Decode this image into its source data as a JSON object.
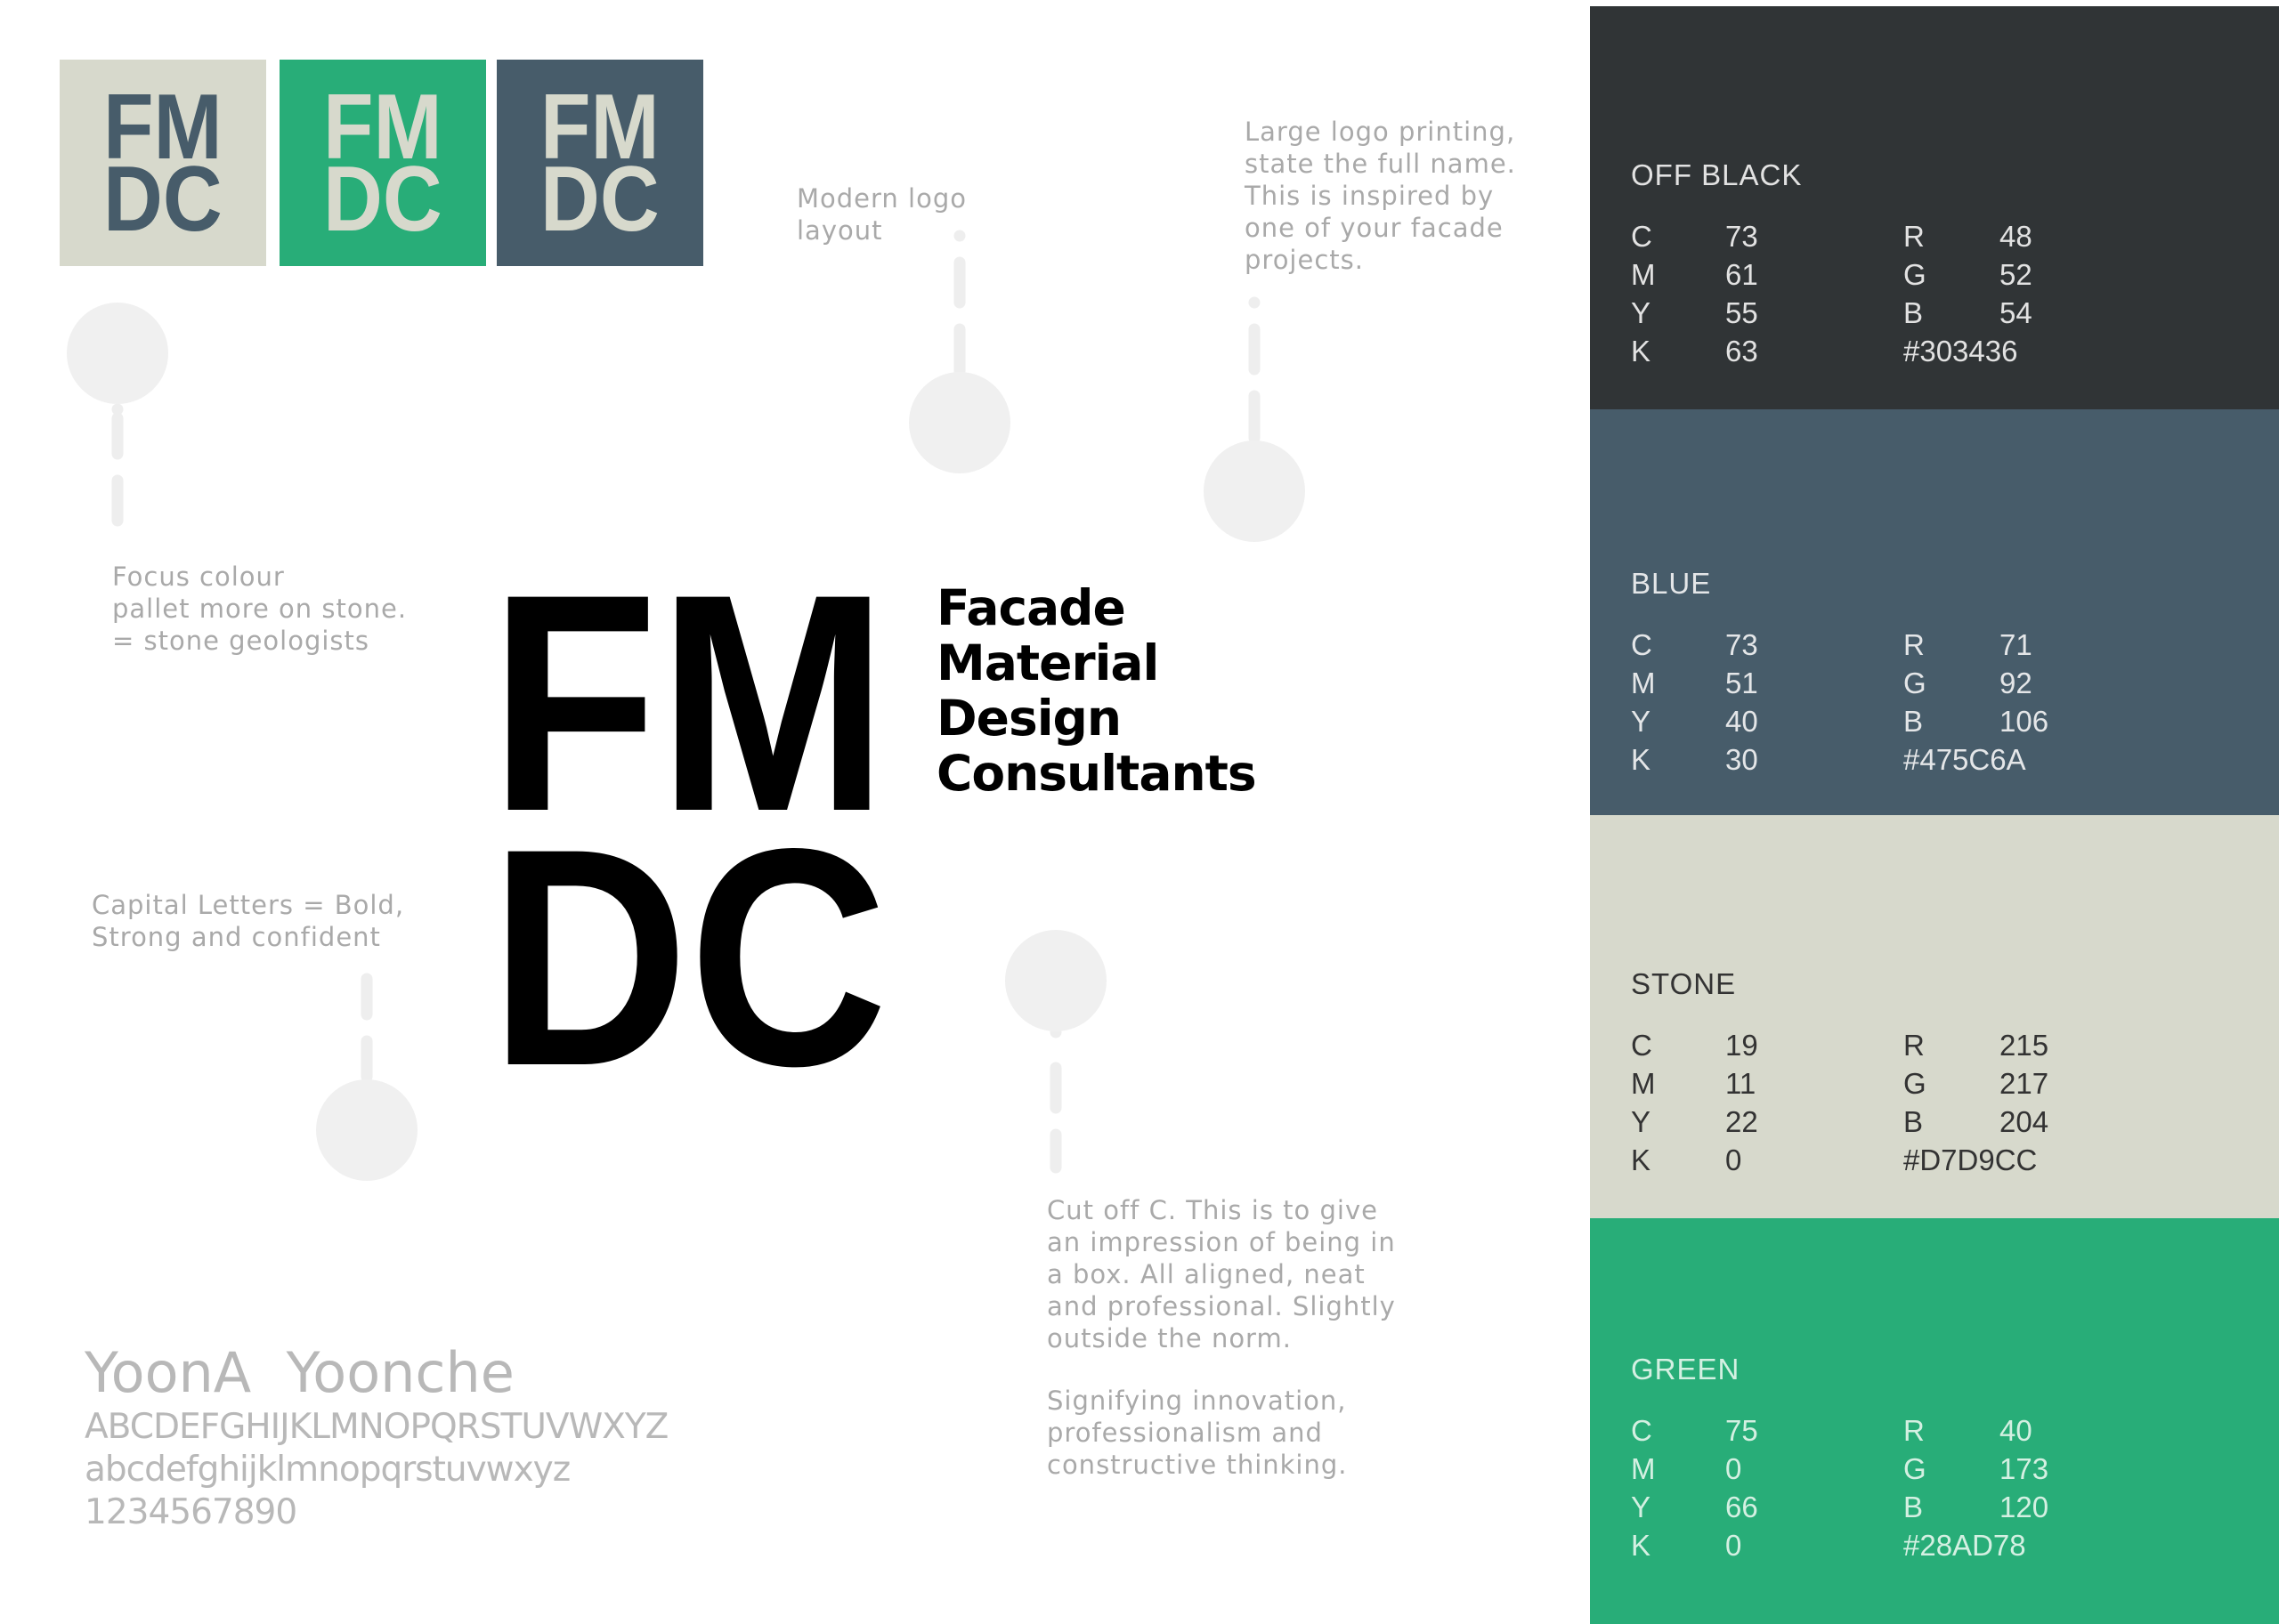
{
  "logo": {
    "line1": "FM",
    "line2": "DC"
  },
  "mini_logos": [
    {
      "bg": "#D7D9CC",
      "fg": "#475C6A"
    },
    {
      "bg": "#28AD78",
      "fg": "#D7D9CC"
    },
    {
      "bg": "#475C6A",
      "fg": "#D7D9CC"
    }
  ],
  "company_name": [
    "Facade",
    "Material",
    "Design",
    "Consultants"
  ],
  "notes": {
    "modern": "Modern logo\nlayout",
    "large": "Large logo printing,\nstate the full name.\nThis is inspired by\none of your facade\nprojects.",
    "focus": "Focus colour\npallet more on stone.\n= stone geologists",
    "capital": "Capital Letters = Bold,\nStrong and confident",
    "cutoff": "Cut off C. This is to give\nan impression of being in\na box. All aligned, neat\nand professional. Slightly\noutside the norm.",
    "signify": "Signifying innovation,\nprofessionalism and\nconstructive thinking."
  },
  "typography": {
    "font_names": "YoonA  Yoonche",
    "uppercase": "ABCDEFGHIJKLMNOPQRSTUVWXYZ",
    "lowercase": "abcdefghijklmnopqrstuvwxyz",
    "digits": "1234567890"
  },
  "palette": [
    {
      "name": "OFF BLACK",
      "bg": "#303436",
      "fg": "#e2e2e2",
      "C": "73",
      "M": "61",
      "Y": "55",
      "K": "63",
      "R": "48",
      "G": "52",
      "B": "54",
      "hex": "#303436"
    },
    {
      "name": "BLUE",
      "bg": "#475C6A",
      "fg": "#e4e6e8",
      "C": "73",
      "M": "51",
      "Y": "40",
      "K": "30",
      "R": "71",
      "G": "92",
      "B": "106",
      "hex": "#475C6A"
    },
    {
      "name": "STONE",
      "bg": "#D7D9CC",
      "fg": "#333333",
      "C": "19",
      "M": "11",
      "Y": "22",
      "K": "0",
      "R": "215",
      "G": "217",
      "B": "204",
      "hex": "#D7D9CC"
    },
    {
      "name": "GREEN",
      "bg": "#28AD78",
      "fg": "#d4f0e2",
      "C": "75",
      "M": "0",
      "Y": "66",
      "K": "0",
      "R": "40",
      "G": "173",
      "B": "120",
      "hex": "#28AD78"
    }
  ],
  "labels": {
    "C": "C",
    "M": "M",
    "Y": "Y",
    "K": "K",
    "R": "R",
    "G": "G",
    "B": "B"
  }
}
